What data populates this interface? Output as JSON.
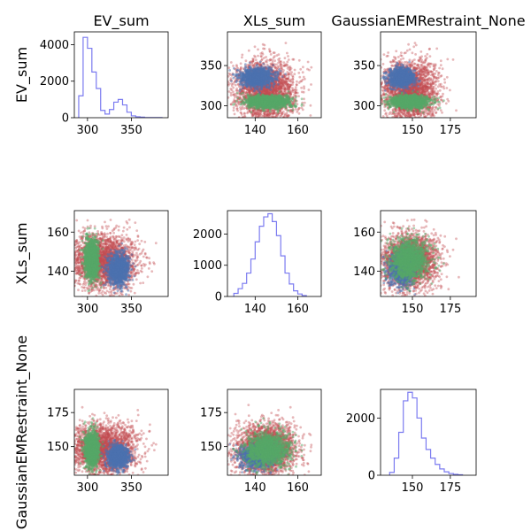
{
  "chart_data": {
    "type": "pair-grid",
    "variables": [
      "EV_sum",
      "XLs_sum",
      "GaussianEMRestraint_None"
    ],
    "column_titles": [
      "EV_sum",
      "XLs_sum",
      "GaussianEMRestraint_None"
    ],
    "row_labels": [
      "EV_sum",
      "XLs_sum",
      "GaussianEMRestraint_None"
    ],
    "colors": {
      "all": "#c44e52",
      "cluster_1": "#4c72b0",
      "cluster_2": "#55a868",
      "histogram": "#7b7bf0"
    },
    "axes": {
      "EV_sum": {
        "lim": [
          285,
          392
        ],
        "ticks": [
          300,
          350
        ]
      },
      "XLs_sum": {
        "lim": [
          127,
          171
        ],
        "ticks": [
          140,
          160
        ]
      },
      "GaussianEMRestraint_None": {
        "lim": [
          129,
          192
        ],
        "ticks": [
          150,
          175
        ]
      }
    },
    "scatter_clusters": {
      "all": {
        "mean": {
          "EV_sum": 318,
          "XLs_sum": 145,
          "GaussianEMRestraint_None": 148
        },
        "sd": {
          "EV_sum": 20,
          "XLs_sum": 7,
          "GaussianEMRestraint_None": 9
        }
      },
      "cluster_1": {
        "mean": {
          "EV_sum": 335,
          "XLs_sum": 141,
          "GaussianEMRestraint_None": 143
        },
        "sd": {
          "EV_sum": 6,
          "XLs_sum": 4,
          "GaussianEMRestraint_None": 4
        }
      },
      "cluster_2": {
        "mean": {
          "EV_sum": 305,
          "XLs_sum": 146,
          "GaussianEMRestraint_None": 148
        },
        "sd": {
          "EV_sum": 4,
          "XLs_sum": 5,
          "GaussianEMRestraint_None": 6
        }
      }
    },
    "histograms": [
      {
        "variable": "EV_sum",
        "ylim": [
          0,
          4700
        ],
        "yticks": [
          0,
          2000,
          4000
        ],
        "bins": [
          290,
          295,
          300,
          305,
          310,
          315,
          320,
          325,
          330,
          335,
          340,
          345,
          350,
          355,
          360,
          365,
          370,
          375,
          380,
          385
        ],
        "counts": [
          1200,
          4400,
          3800,
          2500,
          1600,
          400,
          200,
          450,
          850,
          1000,
          700,
          300,
          100,
          50,
          30,
          10,
          10,
          5,
          5
        ]
      },
      {
        "variable": "XLs_sum",
        "ylim": [
          0,
          2750
        ],
        "yticks": [
          0,
          1000,
          2000
        ],
        "bins": [
          130,
          132,
          134,
          136,
          138,
          140,
          142,
          144,
          146,
          148,
          150,
          152,
          154,
          156,
          158,
          160,
          162,
          164
        ],
        "counts": [
          100,
          250,
          420,
          750,
          1200,
          1750,
          2250,
          2550,
          2650,
          2400,
          1950,
          1300,
          750,
          400,
          180,
          80,
          30
        ]
      },
      {
        "variable": "GaussianEMRestraint_None",
        "ylim": [
          0,
          3000
        ],
        "yticks": [
          0,
          2000
        ],
        "bins": [
          135,
          138,
          141,
          144,
          147,
          150,
          153,
          156,
          159,
          162,
          165,
          168,
          171,
          174,
          177,
          180,
          183
        ],
        "counts": [
          100,
          600,
          1500,
          2600,
          2900,
          2700,
          2000,
          1300,
          900,
          600,
          380,
          220,
          120,
          60,
          30,
          15
        ]
      }
    ]
  }
}
